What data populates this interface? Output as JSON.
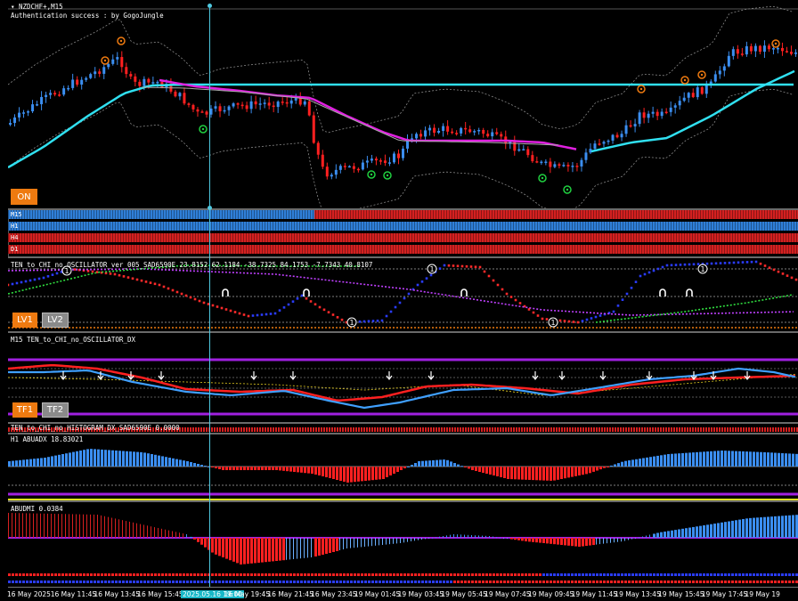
{
  "main": {
    "symbol": "NZDCHF+,M15",
    "auth_text": "Authentication success : by GogoJungle",
    "on_button": "ON"
  },
  "timeframe_stripes": [
    {
      "label": "M15",
      "switch_fraction": 0.388,
      "left_color": "#2f7fd8",
      "right_color": "#d42020"
    },
    {
      "label": "H1",
      "color": "#2f7fd8"
    },
    {
      "label": "H4",
      "color": "#d42020"
    },
    {
      "label": "D1",
      "color": "#d42020"
    }
  ],
  "oscillator": {
    "title": "TEN_to_CHI_no_OSCILLATOR_ver_005_SAD6590E 23.8152 62.1184 -38.7325 84.1753 -7.7343 40.8107",
    "lv1": "LV1",
    "lv2": "LV2"
  },
  "oscillator_dx": {
    "title": "M15 TEN_to_CHI_no_OSCILLATOR_DX",
    "tf1": "TF1",
    "tf2": "TF2"
  },
  "histogram_dx": {
    "title": "TEN_to_CHI_no_HISTOGRAM_DX_SAD6590E 0.0000"
  },
  "abuadx": {
    "title": "H1 ABUADX 18.83021"
  },
  "abudmi": {
    "title": "ABUDMI 0.0384"
  },
  "x_axis": {
    "ticks": [
      "16 May 2025",
      "16 May 11:45",
      "16 May 13:45",
      "16 May 15:45",
      "2025.05.16 19:00",
      "16 May 19:45",
      "16 May 21:45",
      "16 May 23:45",
      "19 May 01:45",
      "19 May 03:45",
      "19 May 05:45",
      "19 May 07:45",
      "19 May 09:45",
      "19 May 11:45",
      "19 May 13:45",
      "19 May 15:45",
      "19 May 17:45",
      "19 May 19"
    ],
    "highlight_index": 4
  },
  "colors": {
    "bull": "#3b8ef0",
    "bear": "#ff2020",
    "ma_cyan": "#30e0f0",
    "ma_magenta": "#e020e0",
    "crosshair": "#4fc8e0",
    "orange": "#ee7a10"
  }
}
